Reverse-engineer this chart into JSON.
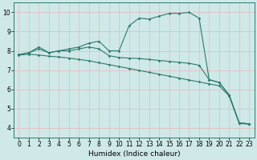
{
  "title": "",
  "xlabel": "Humidex (Indice chaleur)",
  "bg_color": "#cfe8e8",
  "grid_color_v": "#e8b8b8",
  "grid_color_h": "#e8b8b8",
  "line_color": "#2d7b6e",
  "spine_color": "#2d7b6e",
  "xlim": [
    -0.5,
    23.5
  ],
  "ylim": [
    3.5,
    10.5
  ],
  "xticks": [
    0,
    1,
    2,
    3,
    4,
    5,
    6,
    7,
    8,
    9,
    10,
    11,
    12,
    13,
    14,
    15,
    16,
    17,
    18,
    19,
    20,
    21,
    22,
    23
  ],
  "yticks": [
    4,
    5,
    6,
    7,
    8,
    9,
    10
  ],
  "line1_x": [
    0,
    1,
    2,
    3,
    4,
    5,
    6,
    7,
    8,
    9,
    10,
    11,
    12,
    13,
    14,
    15,
    16,
    17,
    18,
    19,
    20,
    21,
    22,
    23
  ],
  "line1_y": [
    7.8,
    7.9,
    8.2,
    7.9,
    8.0,
    8.1,
    8.2,
    8.4,
    8.5,
    8.0,
    8.0,
    9.3,
    9.7,
    9.65,
    9.8,
    9.95,
    9.95,
    10.0,
    9.7,
    6.5,
    6.35,
    5.7,
    4.25,
    4.2
  ],
  "line2_x": [
    0,
    1,
    2,
    3,
    4,
    5,
    6,
    7,
    8,
    9,
    10,
    11,
    12,
    13,
    14,
    15,
    16,
    17,
    18,
    19,
    20,
    21,
    22,
    23
  ],
  "line2_y": [
    7.8,
    7.9,
    8.1,
    7.9,
    8.0,
    8.0,
    8.1,
    8.2,
    8.1,
    7.75,
    7.65,
    7.62,
    7.6,
    7.55,
    7.5,
    7.45,
    7.4,
    7.35,
    7.25,
    6.5,
    6.35,
    5.7,
    4.25,
    4.2
  ],
  "line3_x": [
    0,
    1,
    2,
    3,
    4,
    5,
    6,
    7,
    8,
    9,
    10,
    11,
    12,
    13,
    14,
    15,
    16,
    17,
    18,
    19,
    20,
    21,
    22,
    23
  ],
  "line3_y": [
    7.78,
    7.82,
    7.78,
    7.72,
    7.68,
    7.62,
    7.55,
    7.48,
    7.38,
    7.28,
    7.18,
    7.08,
    6.98,
    6.88,
    6.78,
    6.68,
    6.58,
    6.48,
    6.38,
    6.28,
    6.18,
    5.65,
    4.22,
    4.18
  ],
  "tick_fontsize": 5.5,
  "xlabel_fontsize": 6.5,
  "marker_size": 1.8,
  "line_width": 0.8
}
